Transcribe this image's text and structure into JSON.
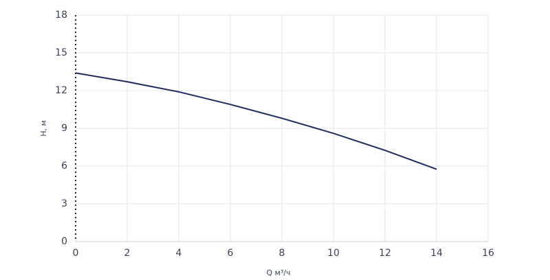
{
  "chart_data": {
    "type": "line",
    "x_label": "Q м³/ч",
    "y_label": "H, м",
    "x": [
      0,
      2,
      4,
      6,
      8,
      10,
      12,
      14
    ],
    "series": [
      {
        "color": "#1b2a5e",
        "values": [
          13.4,
          12.7,
          11.9,
          10.9,
          9.8,
          8.6,
          7.25,
          5.75
        ]
      }
    ],
    "xlim": [
      0,
      16
    ],
    "xticks": [
      0,
      2,
      4,
      6,
      8,
      10,
      12,
      14,
      16
    ],
    "ylim": [
      0,
      18
    ],
    "yticks": [
      0,
      3,
      6,
      9,
      12,
      15,
      18
    ],
    "grid": true
  }
}
